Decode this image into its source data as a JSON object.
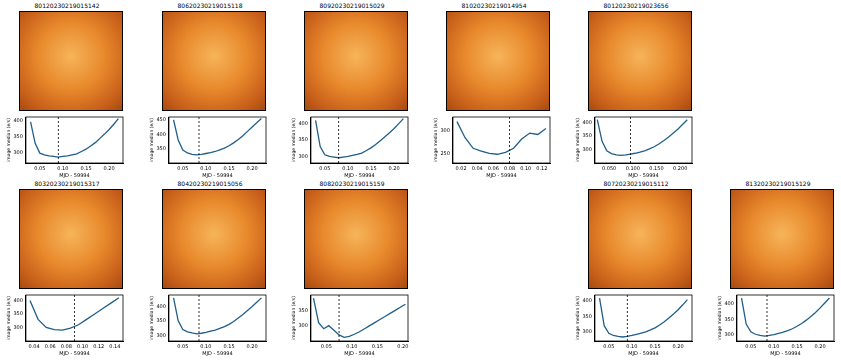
{
  "chart_data": [
    {
      "type": "line",
      "title": "80120230219015142",
      "xlabel": "MJD - 59994",
      "ylabel": "image median (e/s)",
      "color": "#1f5f8b",
      "x": [
        0.03,
        0.04,
        0.05,
        0.06,
        0.07,
        0.08,
        0.09,
        0.1,
        0.11,
        0.12,
        0.13,
        0.14,
        0.15,
        0.16,
        0.17,
        0.18,
        0.19,
        0.2,
        0.21,
        0.22
      ],
      "values": [
        395,
        330,
        300,
        295,
        292,
        290,
        288,
        290,
        292,
        295,
        298,
        305,
        312,
        322,
        332,
        345,
        358,
        372,
        388,
        405
      ],
      "xlim": [
        0.02,
        0.23
      ],
      "xticks": [
        0.05,
        {
          "value": 0.1,
          "label": "0.10"
        },
        0.15,
        {
          "value": 0.2,
          "label": "0.20"
        }
      ],
      "ylim": [
        270,
        410
      ],
      "yticks": [
        300,
        350,
        400
      ],
      "vline": 0.09
    },
    {
      "type": "line",
      "title": "80620230219015118",
      "xlabel": "MJD - 59994",
      "ylabel": "image median (e/s)",
      "color": "#1f5f8b",
      "x": [
        0.03,
        0.04,
        0.05,
        0.06,
        0.07,
        0.08,
        0.09,
        0.1,
        0.11,
        0.12,
        0.13,
        0.14,
        0.15,
        0.16,
        0.17,
        0.18,
        0.19,
        0.2,
        0.21,
        0.22
      ],
      "values": [
        450,
        380,
        345,
        335,
        330,
        328,
        330,
        333,
        336,
        340,
        346,
        352,
        360,
        370,
        382,
        395,
        410,
        425,
        440,
        455
      ],
      "xlim": [
        0.02,
        0.23
      ],
      "xticks": [
        0.05,
        {
          "value": 0.1,
          "label": "0.10"
        },
        0.15,
        {
          "value": 0.2,
          "label": "0.20"
        }
      ],
      "ylim": [
        300,
        460
      ],
      "yticks": [
        350,
        400,
        450
      ],
      "vline": 0.085
    },
    {
      "type": "line",
      "title": "80920230219015029",
      "xlabel": "MJD - 59994",
      "ylabel": "image median (e/s)",
      "color": "#1f5f8b",
      "x": [
        0.03,
        0.04,
        0.05,
        0.06,
        0.07,
        0.08,
        0.09,
        0.1,
        0.11,
        0.12,
        0.13,
        0.14,
        0.15,
        0.16,
        0.17,
        0.18,
        0.19,
        0.2,
        0.21,
        0.22
      ],
      "values": [
        410,
        330,
        305,
        300,
        298,
        296,
        298,
        300,
        303,
        306,
        310,
        318,
        326,
        336,
        348,
        360,
        372,
        385,
        400,
        415
      ],
      "xlim": [
        0.02,
        0.23
      ],
      "xticks": [
        0.05,
        {
          "value": 0.1,
          "label": "0.10"
        },
        0.15,
        {
          "value": 0.2,
          "label": "0.20"
        }
      ],
      "ylim": [
        280,
        420
      ],
      "yticks": [
        300,
        350,
        400
      ],
      "vline": 0.08
    },
    {
      "type": "line",
      "title": "81020230219014954",
      "xlabel": "MJD - 59994",
      "ylabel": "image median (e/s)",
      "color": "#1f5f8b",
      "x": [
        0.015,
        0.025,
        0.035,
        0.045,
        0.055,
        0.065,
        0.075,
        0.085,
        0.095,
        0.105,
        0.115,
        0.125
      ],
      "values": [
        320,
        285,
        262,
        256,
        251,
        249,
        253,
        262,
        282,
        295,
        292,
        305
      ],
      "xlim": [
        0.01,
        0.13
      ],
      "xticks": [
        0.02,
        0.04,
        0.06,
        0.08,
        {
          "value": 0.1,
          "label": "0.10"
        },
        0.12
      ],
      "ylim": [
        230,
        330
      ],
      "yticks": [
        250,
        300
      ],
      "vline": 0.08
    },
    {
      "type": "line",
      "title": "80120230219023656",
      "xlabel": "MJD - 59994",
      "ylabel": "image median (e/s)",
      "color": "#1f5f8b",
      "x": [
        0.025,
        0.035,
        0.045,
        0.055,
        0.065,
        0.075,
        0.085,
        0.095,
        0.105,
        0.115,
        0.125,
        0.135,
        0.145,
        0.155,
        0.165,
        0.175,
        0.185,
        0.195,
        0.205,
        0.215
      ],
      "values": [
        410,
        330,
        295,
        285,
        280,
        278,
        280,
        283,
        286,
        290,
        295,
        302,
        310,
        320,
        332,
        345,
        360,
        375,
        392,
        410
      ],
      "xlim": [
        0.02,
        0.225
      ],
      "xticks": [
        {
          "value": 0.05,
          "label": "0.050"
        },
        {
          "value": 0.1,
          "label": "0.100"
        },
        {
          "value": 0.15,
          "label": "0.150"
        },
        {
          "value": 0.2,
          "label": "0.200"
        }
      ],
      "ylim": [
        250,
        420
      ],
      "yticks": [
        300,
        350,
        400
      ],
      "vline": 0.095
    },
    {
      "type": "line",
      "title": "80320230219015317",
      "xlabel": "MJD - 59994",
      "ylabel": "image median (e/s)",
      "color": "#1f5f8b",
      "x": [
        0.035,
        0.045,
        0.055,
        0.065,
        0.075,
        0.085,
        0.095,
        0.105,
        0.115,
        0.125,
        0.135,
        0.145
      ],
      "values": [
        400,
        330,
        300,
        292,
        290,
        298,
        310,
        330,
        350,
        370,
        390,
        410
      ],
      "xlim": [
        0.03,
        0.15
      ],
      "xticks": [
        0.04,
        0.06,
        0.08,
        {
          "value": 0.1,
          "label": "0.10"
        },
        0.12,
        0.14
      ],
      "ylim": [
        250,
        420
      ],
      "yticks": [
        300,
        350,
        400
      ],
      "vline": 0.09
    },
    {
      "type": "line",
      "title": "80420230219015056",
      "xlabel": "MJD - 59994",
      "ylabel": "image median (e/s)",
      "color": "#1f5f8b",
      "x": [
        0.03,
        0.04,
        0.05,
        0.06,
        0.07,
        0.08,
        0.09,
        0.1,
        0.11,
        0.12,
        0.13,
        0.14,
        0.15,
        0.16,
        0.17,
        0.18,
        0.19,
        0.2,
        0.21,
        0.22
      ],
      "values": [
        430,
        350,
        320,
        312,
        308,
        305,
        307,
        310,
        314,
        318,
        324,
        330,
        338,
        348,
        360,
        372,
        386,
        400,
        415,
        430
      ],
      "xlim": [
        0.02,
        0.23
      ],
      "xticks": [
        0.05,
        {
          "value": 0.1,
          "label": "0.10"
        },
        0.15,
        {
          "value": 0.2,
          "label": "0.20"
        }
      ],
      "ylim": [
        280,
        440
      ],
      "yticks": [
        300,
        350,
        400
      ],
      "vline": 0.085
    },
    {
      "type": "line",
      "title": "80820230219015159",
      "xlabel": "MJD - 59994",
      "ylabel": "image median (e/s)",
      "color": "#1f5f8b",
      "x": [
        0.025,
        0.035,
        0.045,
        0.055,
        0.065,
        0.075,
        0.085,
        0.095,
        0.105,
        0.115,
        0.125,
        0.135,
        0.145,
        0.155,
        0.165,
        0.175,
        0.185,
        0.195,
        0.205
      ],
      "values": [
        390,
        310,
        290,
        300,
        285,
        270,
        262,
        265,
        272,
        280,
        290,
        300,
        310,
        320,
        330,
        340,
        350,
        360,
        370
      ],
      "xlim": [
        0.02,
        0.21
      ],
      "xticks": [
        0.05,
        {
          "value": 0.1,
          "label": "0.10"
        },
        0.15,
        {
          "value": 0.2,
          "label": "0.20"
        }
      ],
      "ylim": [
        250,
        400
      ],
      "yticks": [
        300,
        350
      ],
      "vline": 0.075
    },
    {
      "type": "line",
      "title": "80720230219015112",
      "xlabel": "MJD - 59994",
      "ylabel": "image median (e/s)",
      "color": "#1f5f8b",
      "x": [
        0.03,
        0.04,
        0.05,
        0.06,
        0.07,
        0.08,
        0.09,
        0.1,
        0.11,
        0.12,
        0.13,
        0.14,
        0.15,
        0.16,
        0.17,
        0.18,
        0.19,
        0.2,
        0.21,
        0.22
      ],
      "values": [
        410,
        320,
        295,
        288,
        285,
        283,
        285,
        288,
        292,
        296,
        300,
        306,
        313,
        322,
        333,
        345,
        358,
        372,
        388,
        405
      ],
      "xlim": [
        0.02,
        0.23
      ],
      "xticks": [
        0.05,
        {
          "value": 0.1,
          "label": "0.10"
        },
        0.15,
        {
          "value": 0.2,
          "label": "0.20"
        }
      ],
      "ylim": [
        270,
        420
      ],
      "yticks": [
        300,
        350,
        400
      ],
      "vline": 0.09
    },
    {
      "type": "line",
      "title": "81320230219015129",
      "xlabel": "MJD - 59994",
      "ylabel": "image median (e/s)",
      "color": "#1f5f8b",
      "x": [
        0.03,
        0.04,
        0.05,
        0.06,
        0.07,
        0.08,
        0.09,
        0.1,
        0.11,
        0.12,
        0.13,
        0.14,
        0.15,
        0.16,
        0.17,
        0.18,
        0.19,
        0.2,
        0.21,
        0.22
      ],
      "values": [
        420,
        335,
        310,
        302,
        298,
        296,
        298,
        301,
        305,
        309,
        314,
        320,
        328,
        337,
        348,
        360,
        373,
        388,
        404,
        420
      ],
      "xlim": [
        0.02,
        0.23
      ],
      "xticks": [
        0.05,
        {
          "value": 0.1,
          "label": "0.10"
        },
        0.15,
        {
          "value": 0.2,
          "label": "0.20"
        }
      ],
      "ylim": [
        280,
        430
      ],
      "yticks": [
        300,
        350,
        400
      ],
      "vline": 0.085
    }
  ]
}
